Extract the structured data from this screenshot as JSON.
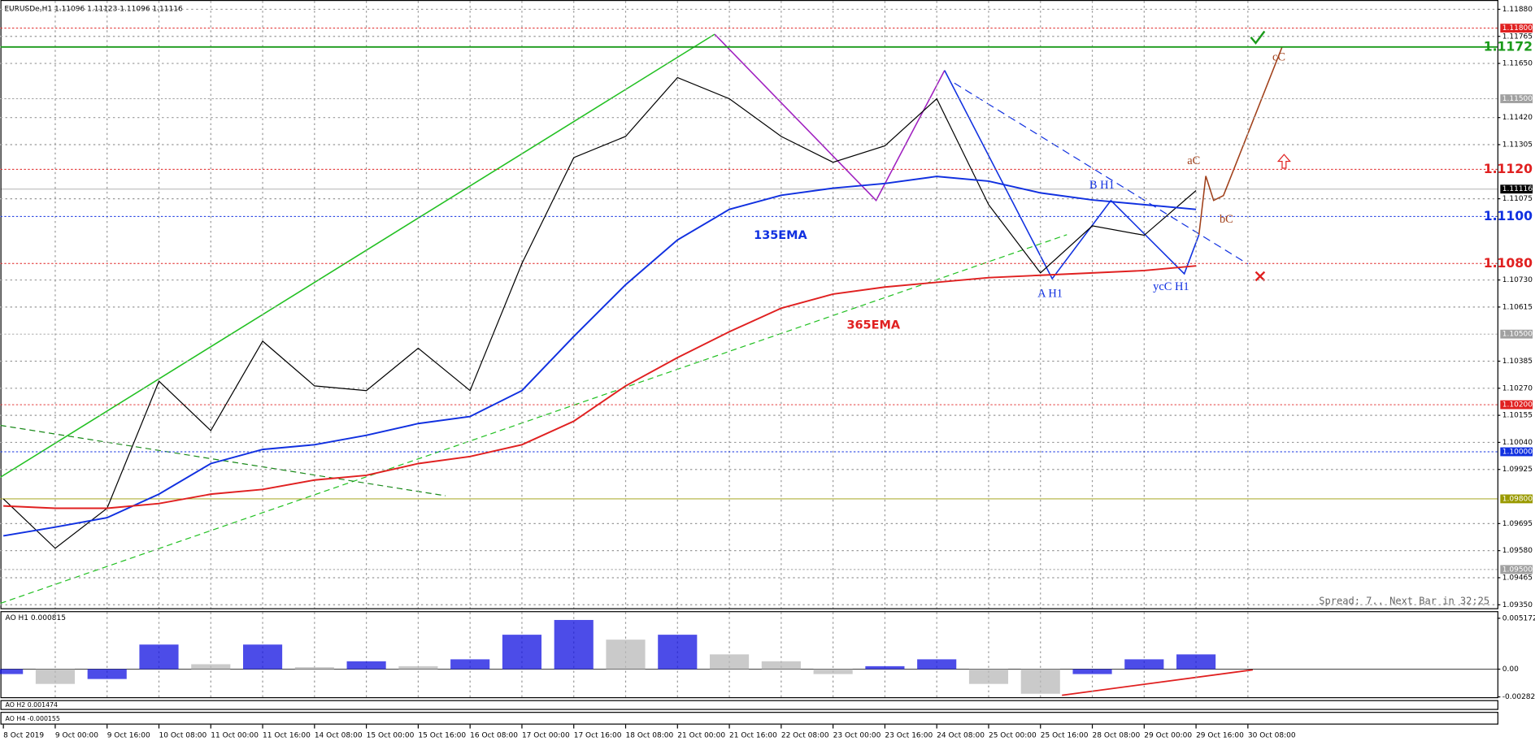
{
  "chart_data": {
    "type": "line",
    "title": "EURUSDe,H1  1.11096 1.11123 1.11096 1.11116",
    "status": "Spread: 7.. Next Bar in 32:25",
    "categories": [
      "8 Oct 2019",
      "9 Oct 00:00",
      "9 Oct 16:00",
      "10 Oct 08:00",
      "11 Oct 00:00",
      "11 Oct 16:00",
      "14 Oct 08:00",
      "15 Oct 00:00",
      "15 Oct 16:00",
      "16 Oct 08:00",
      "17 Oct 00:00",
      "17 Oct 16:00",
      "18 Oct 08:00",
      "21 Oct 00:00",
      "21 Oct 16:00",
      "22 Oct 08:00",
      "23 Oct 00:00",
      "23 Oct 16:00",
      "24 Oct 08:00",
      "25 Oct 00:00",
      "25 Oct 16:00",
      "28 Oct 08:00",
      "29 Oct 00:00",
      "29 Oct 16:00",
      "30 Oct 08:00"
    ],
    "series": [
      {
        "name": "Close",
        "color": "#000000",
        "values": [
          1.098,
          1.0959,
          1.0976,
          1.103,
          1.1009,
          1.1047,
          1.1028,
          1.1026,
          1.1044,
          1.1026,
          1.108,
          1.1125,
          1.1134,
          1.1159,
          1.115,
          1.1134,
          1.1123,
          1.113,
          1.115,
          1.1105,
          1.1076,
          1.1096,
          1.1092,
          1.1111,
          null
        ]
      },
      {
        "name": "135EMA",
        "color": "#1030e0",
        "values": [
          1.09643,
          1.0968,
          1.0972,
          1.0982,
          1.0995,
          1.1001,
          1.1003,
          1.1007,
          1.1012,
          1.1015,
          1.1026,
          1.1049,
          1.1071,
          1.109,
          1.1103,
          1.1109,
          1.1112,
          1.1114,
          1.1117,
          1.1115,
          1.111,
          1.1107,
          1.1105,
          1.1103,
          null
        ]
      },
      {
        "name": "365EMA",
        "color": "#e02020",
        "values": [
          1.0977,
          1.0976,
          1.0976,
          1.0978,
          1.0982,
          1.0984,
          1.0988,
          1.099,
          1.0995,
          1.0998,
          1.1003,
          1.1013,
          1.1028,
          1.104,
          1.1051,
          1.1061,
          1.1067,
          1.107,
          1.1072,
          1.1074,
          1.1075,
          1.1076,
          1.1077,
          1.1079,
          null
        ]
      }
    ],
    "ylim": [
      1.0933,
      1.119
    ],
    "yticks": [
      {
        "value": 1.1188,
        "label": "1.11880"
      },
      {
        "value": 1.11765,
        "label": "1.11765"
      },
      {
        "value": 1.1165,
        "label": "1.11650"
      },
      {
        "value": 1.1142,
        "label": "1.11420"
      },
      {
        "value": 1.11305,
        "label": "1.11305"
      },
      {
        "value": 1.11075,
        "label": "1.11075"
      },
      {
        "value": 1.1073,
        "label": "1.10730"
      },
      {
        "value": 1.10615,
        "label": "1.10615"
      },
      {
        "value": 1.10385,
        "label": "1.10385"
      },
      {
        "value": 1.1027,
        "label": "1.10270"
      },
      {
        "value": 1.10155,
        "label": "1.10155"
      },
      {
        "value": 1.1004,
        "label": "1.10040"
      },
      {
        "value": 1.09925,
        "label": "1.09925"
      },
      {
        "value": 1.09695,
        "label": "1.09695"
      },
      {
        "value": 1.0958,
        "label": "1.09580"
      },
      {
        "value": 1.09465,
        "label": "1.09465"
      },
      {
        "value": 1.0935,
        "label": "1.09350"
      }
    ],
    "grid": true,
    "levels": [
      {
        "value": 1.118,
        "label": "1.11800",
        "color": "#e02020",
        "label_style": "box"
      },
      {
        "value": 1.1172,
        "label": "1.1172",
        "color": "#1a9a1a",
        "label_style": "big"
      },
      {
        "value": 1.115,
        "label": "1.11500",
        "color": "#a0a0a0",
        "label_style": "box"
      },
      {
        "value": 1.112,
        "label": "1.1120",
        "color": "#e02020",
        "label_style": "big"
      },
      {
        "value": 1.11116,
        "label": "1.11116",
        "color": "#000000",
        "label_style": "box"
      },
      {
        "value": 1.11,
        "label": "1.1100",
        "color": "#1030e0",
        "label_style": "big"
      },
      {
        "value": 1.108,
        "label": "1.1080",
        "color": "#e02020",
        "label_style": "big"
      },
      {
        "value": 1.105,
        "label": "1.10500",
        "color": "#a0a0a0",
        "label_style": "box"
      },
      {
        "value": 1.102,
        "label": "1.10200",
        "color": "#e02020",
        "label_style": "box"
      },
      {
        "value": 1.1,
        "label": "1.10000",
        "color": "#1030e0",
        "label_style": "box"
      },
      {
        "value": 1.098,
        "label": "1.09800",
        "color": "#9a9a00",
        "label_style": "box"
      },
      {
        "value": 1.095,
        "label": "1.09500",
        "color": "#a0a0a0",
        "label_style": "box"
      }
    ],
    "annotations": [
      "135EMA",
      "365EMA",
      "A H1",
      "B H1",
      "ycC H1",
      "aC",
      "bC",
      "cC"
    ],
    "ao": {
      "title": "AO H1  0.000815",
      "color": "#1010e0",
      "values": [
        -0.0005,
        -0.0015,
        -0.001,
        0.0025,
        0.0005,
        0.0025,
        0.0002,
        0.0008,
        0.0003,
        0.001,
        0.0035,
        0.005,
        0.003,
        0.0035,
        0.0015,
        0.0008,
        -0.0005,
        0.0003,
        0.001,
        -0.0015,
        -0.0025,
        -0.0005,
        0.001,
        0.0015,
        null
      ],
      "ylim": [
        -0.0029,
        0.0053
      ],
      "yticks": [
        {
          "value": 0.005172,
          "label": "0.005172"
        },
        {
          "value": 0,
          "label": "0.00"
        },
        {
          "value": -0.002821,
          "label": "-0.002821"
        }
      ]
    },
    "ao_h2_title": "AO H2  0.001474",
    "ao_h4_title": "AO H4  -0.000155"
  }
}
